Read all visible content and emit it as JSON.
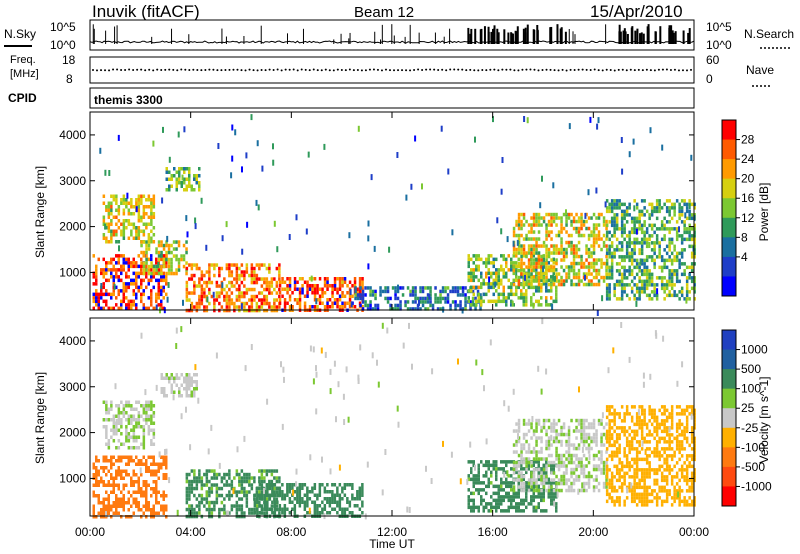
{
  "header": {
    "station": "Inuvik (fitACF)",
    "beam": "Beam 12",
    "date": "15/Apr/2010"
  },
  "noise_panel": {
    "left_label": "N.Sky",
    "right_label": "N.Search",
    "top_tick": "10^5",
    "bottom_tick": "10^0",
    "right_top_tick": "10^5",
    "right_bottom_tick": "10^0"
  },
  "freq_panel": {
    "left_label_1": "Freq.",
    "left_label_2": "[MHz]",
    "left_top_tick": "18",
    "left_bottom_tick": "8",
    "right_label": "Nave",
    "right_top_tick": "60",
    "right_bottom_tick": "0"
  },
  "cpid_panel": {
    "label": "CPID",
    "value": "themis 3300"
  },
  "colorbars": {
    "power": {
      "title": "Power [dB]",
      "ticks": [
        "28",
        "24",
        "20",
        "16",
        "12",
        "8",
        "4"
      ],
      "colors": [
        "#ff0000",
        "#ff5a00",
        "#ff9a00",
        "#d6cf10",
        "#7cc832",
        "#2f9a5a",
        "#1a6fa0",
        "#1e3ec8",
        "#0000ff"
      ]
    },
    "velocity": {
      "title": "Velocity [m s^-1]",
      "ticks": [
        "1000",
        "500",
        "100",
        "25",
        "-25",
        "-100",
        "-500",
        "-1000"
      ],
      "colors": [
        "#2040c0",
        "#2060a0",
        "#3a8a5a",
        "#7cc832",
        "#c8c8c8",
        "#ffb000",
        "#ff7a10",
        "#ff4a10",
        "#ff0000"
      ]
    }
  },
  "chart_data": [
    {
      "type": "heatmap",
      "title": "Power",
      "xlabel": "Time UT",
      "ylabel": "Slant Range [km]",
      "x_ticks": [
        "00:00",
        "04:00",
        "08:00",
        "12:00",
        "16:00",
        "20:00",
        "00:00"
      ],
      "y_ticks": [
        "1000",
        "2000",
        "3000",
        "4000"
      ],
      "ylim": [
        180,
        4500
      ],
      "xlim_hours": [
        0,
        24
      ],
      "colorbar_label": "Power [dB]",
      "regions": [
        {
          "t0": 0.1,
          "t1": 3.0,
          "r0": 200,
          "r1": 1400,
          "value": 28
        },
        {
          "t0": 0.5,
          "t1": 2.5,
          "r0": 1700,
          "r1": 2700,
          "value": 18
        },
        {
          "t0": 2.0,
          "t1": 3.8,
          "r0": 1000,
          "r1": 1700,
          "value": 16
        },
        {
          "t0": 3.0,
          "t1": 4.3,
          "r0": 2800,
          "r1": 3300,
          "value": 12
        },
        {
          "t0": 3.8,
          "t1": 7.5,
          "r0": 200,
          "r1": 1200,
          "value": 24
        },
        {
          "t0": 7.5,
          "t1": 10.8,
          "r0": 200,
          "r1": 900,
          "value": 26
        },
        {
          "t0": 10.5,
          "t1": 15.5,
          "r0": 200,
          "r1": 700,
          "value": 6
        },
        {
          "t0": 15.0,
          "t1": 18.5,
          "r0": 300,
          "r1": 1400,
          "value": 14
        },
        {
          "t0": 16.8,
          "t1": 20.5,
          "r0": 700,
          "r1": 2300,
          "value": 18
        },
        {
          "t0": 20.5,
          "t1": 24.0,
          "r0": 400,
          "r1": 2600,
          "value": 12
        }
      ]
    },
    {
      "type": "heatmap",
      "title": "Velocity",
      "xlabel": "Time UT",
      "ylabel": "Slant Range [km]",
      "x_ticks": [
        "00:00",
        "04:00",
        "08:00",
        "12:00",
        "16:00",
        "20:00",
        "00:00"
      ],
      "y_ticks": [
        "1000",
        "2000",
        "3000",
        "4000"
      ],
      "ylim": [
        180,
        4500
      ],
      "xlim_hours": [
        0,
        24
      ],
      "colorbar_label": "Velocity [m s^-1]",
      "regions": [
        {
          "t0": 0.1,
          "t1": 3.0,
          "r0": 200,
          "r1": 1500,
          "value": -300
        },
        {
          "t0": 0.5,
          "t1": 2.5,
          "r0": 1700,
          "r1": 2700,
          "value": 20
        },
        {
          "t0": 2.8,
          "t1": 4.2,
          "r0": 2800,
          "r1": 3300,
          "value": 10
        },
        {
          "t0": 3.8,
          "t1": 7.5,
          "r0": 200,
          "r1": 1200,
          "value": 150
        },
        {
          "t0": 6.5,
          "t1": 10.8,
          "r0": 200,
          "r1": 900,
          "value": 200
        },
        {
          "t0": 15.0,
          "t1": 18.5,
          "r0": 300,
          "r1": 1400,
          "value": 180
        },
        {
          "t0": 16.8,
          "t1": 20.5,
          "r0": 700,
          "r1": 2300,
          "value": 15
        },
        {
          "t0": 20.5,
          "t1": 24.0,
          "r0": 400,
          "r1": 2600,
          "value": -60
        }
      ]
    }
  ]
}
